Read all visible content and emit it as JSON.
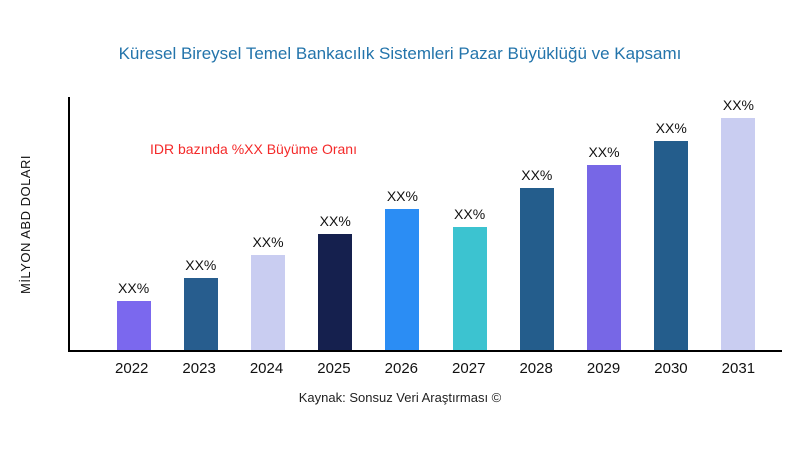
{
  "figure": {
    "title": "Küresel Bireysel Temel Bankacılık Sistemleri Pazar Büyüklüğü ve Kapsamı",
    "source": "Kaynak: Sonsuz Veri Araştırması ©"
  },
  "chart_data": {
    "type": "bar",
    "title": "Küresel Bireysel Temel Bankacılık Sistemleri Pazar Büyüklüğü ve Kapsamı",
    "xlabel": "",
    "ylabel": "MİLYON ABD DOLARI",
    "annotation": "IDR bazında %XX Büyüme Oranı",
    "source": "Kaynak: Sonsuz Veri Araştırması ©",
    "categories": [
      "2022",
      "2023",
      "2024",
      "2025",
      "2026",
      "2027",
      "2028",
      "2029",
      "2030",
      "2031"
    ],
    "values": [
      21,
      31,
      41,
      50,
      61,
      53,
      70,
      80,
      90,
      100
    ],
    "bar_labels": [
      "XX%",
      "XX%",
      "XX%",
      "XX%",
      "XX%",
      "XX%",
      "XX%",
      "XX%",
      "XX%",
      "XX%"
    ],
    "bar_colors": [
      "#7b68ee",
      "#275d8e",
      "#c9cdf1",
      "#15204e",
      "#2b8df4",
      "#3cc3d0",
      "#245d8c",
      "#7767e6",
      "#245d8c",
      "#c9cdf1"
    ],
    "ylim": [
      0,
      110
    ],
    "grid": false,
    "legend": "none",
    "colors": {
      "title": "#2374ab",
      "annotation": "#f42a2a",
      "axis": "#000000",
      "background": "#ffffff"
    }
  }
}
